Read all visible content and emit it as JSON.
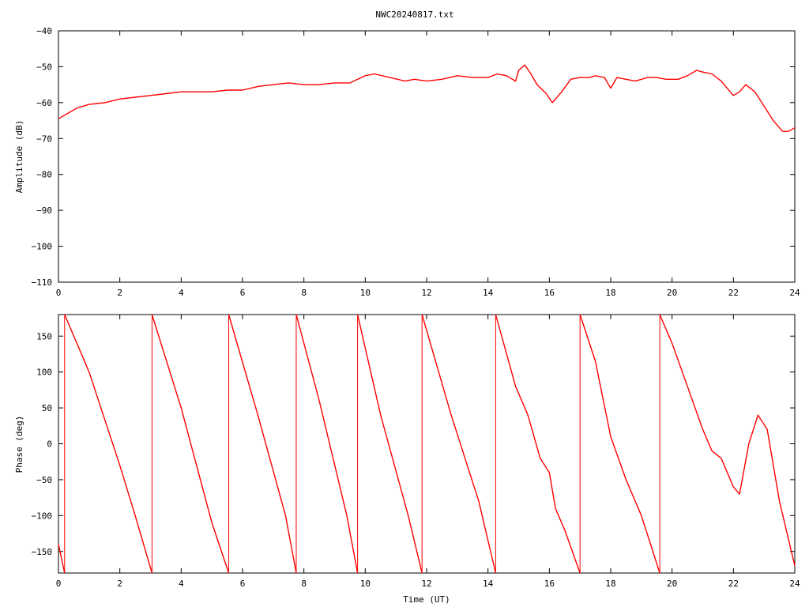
{
  "title": "NWC20240817.txt",
  "colors": {
    "trace": "#ff0000",
    "axes": "#000000",
    "background": "#ffffff"
  },
  "chart_data": [
    {
      "type": "line",
      "title": "NWC20240817.txt",
      "xlabel": "",
      "ylabel": "Amplitude (dB)",
      "xlim": [
        0,
        24
      ],
      "ylim": [
        -110,
        -40
      ],
      "xticks": [
        0,
        2,
        4,
        6,
        8,
        10,
        12,
        14,
        16,
        18,
        20,
        22,
        24
      ],
      "yticks": [
        -110,
        -100,
        -90,
        -80,
        -70,
        -60,
        -50,
        -40
      ],
      "grid": false,
      "series": [
        {
          "x": [
            0,
            0.3,
            0.6,
            1.0,
            1.5,
            2.0,
            2.5,
            3.0,
            3.5,
            4.0,
            4.5,
            5.0,
            5.5,
            6.0,
            6.5,
            7.0,
            7.5,
            8.0,
            8.5,
            9.0,
            9.5,
            10.0,
            10.3,
            10.8,
            11.3,
            11.6,
            12.0,
            12.5,
            13.0,
            13.5,
            14.0,
            14.3,
            14.6,
            14.9,
            15.0,
            15.2,
            15.4,
            15.6,
            15.9,
            16.1,
            16.4,
            16.7,
            17.0,
            17.3,
            17.5,
            17.8,
            18.0,
            18.2,
            18.5,
            18.8,
            19.2,
            19.5,
            19.8,
            20.2,
            20.5,
            20.8,
            21.0,
            21.3,
            21.6,
            22.0,
            22.2,
            22.4,
            22.7,
            23.0,
            23.3,
            23.6,
            23.8,
            24.0
          ],
          "y": [
            -64.5,
            -63,
            -61.5,
            -60.5,
            -60,
            -59,
            -58.5,
            -58,
            -57.5,
            -57,
            -57,
            -57,
            -56.5,
            -56.5,
            -55.5,
            -55,
            -54.5,
            -55,
            -55,
            -54.5,
            -54.5,
            -52.5,
            -52,
            -53,
            -54,
            -53.5,
            -54,
            -53.5,
            -52.5,
            -53,
            -53,
            -52,
            -52.5,
            -54,
            -51,
            -49.5,
            -52,
            -55,
            -57.5,
            -60,
            -57,
            -53.5,
            -53,
            -53,
            -52.5,
            -53,
            -56,
            -53,
            -53.5,
            -54,
            -53,
            -53,
            -53.5,
            -53.5,
            -52.5,
            -51,
            -51.5,
            -52,
            -54,
            -58,
            -57,
            -55,
            -57,
            -61,
            -65,
            -68,
            -68,
            -67
          ]
        }
      ]
    },
    {
      "type": "line",
      "title": "",
      "xlabel": "Time (UT)",
      "ylabel": "Phase (deg)",
      "xlim": [
        0,
        24
      ],
      "ylim": [
        -180,
        180
      ],
      "xticks": [
        0,
        2,
        4,
        6,
        8,
        10,
        12,
        14,
        16,
        18,
        20,
        22,
        24
      ],
      "yticks": [
        -150,
        -100,
        -50,
        0,
        50,
        100,
        150
      ],
      "grid": false,
      "series": [
        {
          "x": [
            0,
            0.2
          ],
          "y": [
            -140,
            -180
          ]
        },
        {
          "x": [
            0.2,
            1.0,
            2.0,
            2.5,
            3.05
          ],
          "y": [
            180,
            100,
            -30,
            -100,
            -180
          ]
        },
        {
          "x": [
            3.05,
            4.0,
            5.0,
            5.55
          ],
          "y": [
            180,
            50,
            -110,
            -180
          ]
        },
        {
          "x": [
            5.55,
            6.5,
            7.4,
            7.75
          ],
          "y": [
            180,
            40,
            -100,
            -180
          ]
        },
        {
          "x": [
            7.75,
            8.5,
            9.4,
            9.75
          ],
          "y": [
            180,
            60,
            -100,
            -180
          ]
        },
        {
          "x": [
            9.75,
            10.5,
            11.4,
            11.85
          ],
          "y": [
            180,
            40,
            -100,
            -180
          ]
        },
        {
          "x": [
            11.85,
            12.8,
            13.7,
            14.25
          ],
          "y": [
            180,
            40,
            -80,
            -180
          ]
        },
        {
          "x": [
            14.25,
            14.9,
            15.3,
            15.7,
            16.0,
            16.2,
            16.5,
            17.0
          ],
          "y": [
            180,
            80,
            40,
            -20,
            -40,
            -90,
            -120,
            -180
          ]
        },
        {
          "x": [
            17.0,
            17.5,
            18.0,
            18.5,
            19.0,
            19.6
          ],
          "y": [
            180,
            115,
            10,
            -50,
            -100,
            -180
          ]
        },
        {
          "x": [
            19.6,
            20.0,
            20.5,
            21.0,
            21.3,
            21.6,
            22.0,
            22.2,
            22.5,
            22.8,
            23.1,
            23.5,
            24.0
          ],
          "y": [
            180,
            140,
            80,
            20,
            -10,
            -20,
            -60,
            -70,
            0,
            40,
            20,
            -80,
            -170
          ]
        }
      ]
    }
  ]
}
